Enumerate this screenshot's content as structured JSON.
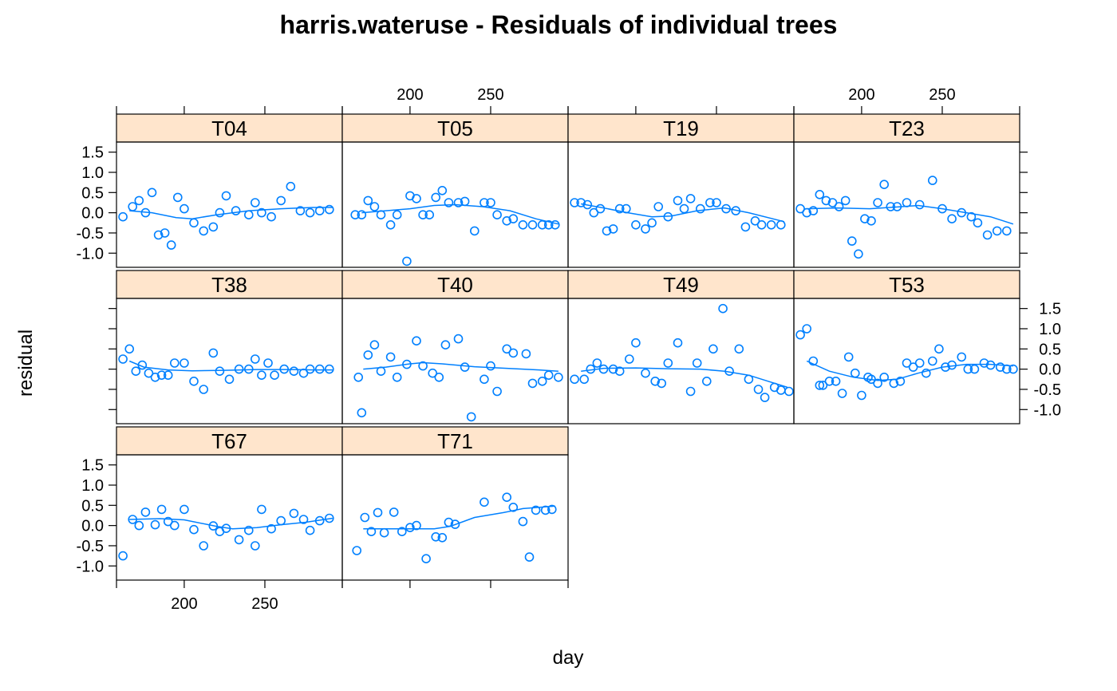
{
  "chart_data": {
    "type": "scatter",
    "title": "harris.wateruse - Residuals of individual trees",
    "xlabel": "day",
    "ylabel": "residual",
    "xlim": [
      158,
      298
    ],
    "ylim": [
      -1.35,
      1.75
    ],
    "x_ticks": [
      200,
      250
    ],
    "y_ticks": [
      -1.0,
      -0.5,
      0.0,
      0.5,
      1.0,
      1.5
    ],
    "y_tick_labels": [
      "-1.0",
      "-0.5",
      "0.0",
      "0.5",
      "1.0",
      "1.5"
    ],
    "strip_color": "#ffe5cc",
    "point_color": "#0080ff",
    "panels": [
      {
        "name": "T67",
        "row": 0,
        "col": 0,
        "x": [
          162,
          168,
          172,
          176,
          182,
          186,
          190,
          194,
          200,
          206,
          212,
          218,
          222,
          226,
          234,
          240,
          244,
          248,
          254,
          260,
          268,
          274,
          278,
          284,
          290
        ],
        "y": [
          -0.75,
          0.15,
          0.0,
          0.33,
          0.02,
          0.4,
          0.1,
          0.0,
          0.4,
          -0.1,
          -0.5,
          -0.01,
          -0.15,
          -0.07,
          -0.35,
          -0.12,
          -0.5,
          0.4,
          -0.08,
          0.12,
          0.3,
          0.15,
          -0.12,
          0.12,
          0.18
        ],
        "smooth": [
          [
            166,
            0.15
          ],
          [
            185,
            0.17
          ],
          [
            200,
            0.14
          ],
          [
            220,
            -0.02
          ],
          [
            230,
            -0.08
          ],
          [
            245,
            -0.05
          ],
          [
            260,
            0.02
          ],
          [
            275,
            0.08
          ],
          [
            292,
            0.18
          ]
        ]
      },
      {
        "name": "T71",
        "row": 0,
        "col": 1,
        "x": [
          167,
          172,
          176,
          180,
          184,
          190,
          195,
          200,
          204,
          210,
          216,
          220,
          224,
          228,
          246,
          260,
          264,
          270,
          274,
          278,
          284,
          288
        ],
        "y": [
          -0.62,
          0.2,
          -0.15,
          0.32,
          -0.18,
          0.33,
          -0.15,
          -0.05,
          0.0,
          -0.82,
          -0.28,
          -0.3,
          0.08,
          0.03,
          0.58,
          0.7,
          0.45,
          0.1,
          -0.78,
          0.38,
          0.38,
          0.4
        ],
        "smooth": [
          [
            171,
            -0.08
          ],
          [
            185,
            -0.08
          ],
          [
            200,
            -0.08
          ],
          [
            215,
            -0.08
          ],
          [
            225,
            -0.02
          ],
          [
            240,
            0.2
          ],
          [
            258,
            0.32
          ],
          [
            270,
            0.42
          ],
          [
            290,
            0.48
          ]
        ]
      },
      {
        "name": "T38",
        "row": 1,
        "col": 0,
        "x": [
          162,
          166,
          170,
          174,
          178,
          182,
          186,
          190,
          194,
          200,
          206,
          212,
          218,
          222,
          228,
          234,
          240,
          244,
          248,
          252,
          256,
          262,
          268,
          274,
          278,
          284,
          290
        ],
        "y": [
          0.25,
          0.5,
          -0.05,
          0.1,
          -0.1,
          -0.2,
          -0.15,
          -0.15,
          0.15,
          0.15,
          -0.3,
          -0.5,
          0.4,
          -0.05,
          -0.25,
          0.0,
          0.0,
          0.25,
          -0.15,
          0.15,
          -0.15,
          0.0,
          -0.05,
          -0.1,
          0.0,
          0.0,
          0.0
        ],
        "smooth": [
          [
            166,
            0.2
          ],
          [
            175,
            0.05
          ],
          [
            190,
            -0.02
          ],
          [
            205,
            -0.04
          ],
          [
            225,
            -0.03
          ],
          [
            245,
            -0.01
          ],
          [
            265,
            -0.01
          ],
          [
            280,
            -0.02
          ],
          [
            292,
            -0.02
          ]
        ]
      },
      {
        "name": "T40",
        "row": 1,
        "col": 1,
        "x": [
          168,
          170,
          174,
          178,
          182,
          188,
          192,
          198,
          204,
          208,
          214,
          218,
          222,
          230,
          234,
          238,
          246,
          250,
          254,
          260,
          264,
          272,
          276,
          282,
          286,
          292
        ],
        "y": [
          -0.2,
          -1.08,
          0.35,
          0.6,
          -0.05,
          0.3,
          -0.2,
          0.12,
          0.7,
          0.08,
          -0.1,
          -0.2,
          0.6,
          0.75,
          0.05,
          -1.18,
          -0.25,
          0.08,
          -0.55,
          0.5,
          0.4,
          0.38,
          -0.35,
          -0.3,
          -0.15,
          -0.2
        ],
        "smooth": [
          [
            171,
            0.0
          ],
          [
            185,
            0.05
          ],
          [
            200,
            0.13
          ],
          [
            208,
            0.16
          ],
          [
            220,
            0.13
          ],
          [
            240,
            0.06
          ],
          [
            260,
            0.02
          ],
          [
            280,
            -0.02
          ],
          [
            292,
            -0.05
          ]
        ]
      },
      {
        "name": "T49",
        "row": 1,
        "col": 2,
        "x": [
          162,
          168,
          172,
          176,
          180,
          186,
          190,
          196,
          200,
          206,
          212,
          216,
          220,
          226,
          234,
          238,
          244,
          248,
          254,
          258,
          264,
          270,
          276,
          280,
          286,
          290,
          295
        ],
        "y": [
          -0.25,
          -0.25,
          0.0,
          0.15,
          0.0,
          0.0,
          -0.05,
          0.25,
          0.65,
          -0.1,
          -0.3,
          -0.35,
          0.15,
          0.65,
          -0.55,
          0.15,
          -0.3,
          0.5,
          1.5,
          -0.05,
          0.5,
          -0.25,
          -0.5,
          -0.7,
          -0.45,
          -0.52,
          -0.55
        ],
        "smooth": [
          [
            166,
            -0.05
          ],
          [
            180,
            0.02
          ],
          [
            200,
            0.03
          ],
          [
            220,
            0.01
          ],
          [
            240,
            0.0
          ],
          [
            255,
            -0.05
          ],
          [
            270,
            -0.15
          ],
          [
            282,
            -0.3
          ],
          [
            294,
            -0.45
          ]
        ]
      },
      {
        "name": "T53",
        "row": 1,
        "col": 3,
        "x": [
          162,
          166,
          170,
          174,
          176,
          180,
          184,
          188,
          192,
          196,
          200,
          204,
          206,
          210,
          214,
          220,
          224,
          228,
          232,
          236,
          240,
          244,
          248,
          252,
          256,
          262,
          266,
          270,
          276,
          280,
          286,
          290,
          294
        ],
        "y": [
          0.85,
          1.0,
          0.2,
          -0.4,
          -0.4,
          -0.3,
          -0.3,
          -0.6,
          0.3,
          -0.1,
          -0.65,
          -0.2,
          -0.25,
          -0.35,
          -0.2,
          -0.35,
          -0.3,
          0.15,
          0.05,
          0.15,
          -0.1,
          0.2,
          0.5,
          0.05,
          0.1,
          0.3,
          0.0,
          0.0,
          0.15,
          0.1,
          0.05,
          0.0,
          0.0
        ],
        "smooth": [
          [
            166,
            0.2
          ],
          [
            180,
            -0.05
          ],
          [
            195,
            -0.2
          ],
          [
            210,
            -0.28
          ],
          [
            222,
            -0.25
          ],
          [
            235,
            -0.1
          ],
          [
            250,
            0.05
          ],
          [
            265,
            0.12
          ],
          [
            280,
            0.12
          ],
          [
            294,
            0.08
          ]
        ]
      },
      {
        "name": "T04",
        "row": 2,
        "col": 0,
        "x": [
          162,
          168,
          172,
          176,
          180,
          184,
          188,
          192,
          196,
          200,
          206,
          212,
          218,
          222,
          226,
          232,
          240,
          244,
          248,
          254,
          260,
          266,
          272,
          278,
          284,
          290
        ],
        "y": [
          -0.1,
          0.15,
          0.3,
          0.0,
          0.5,
          -0.55,
          -0.5,
          -0.8,
          0.38,
          0.1,
          -0.25,
          -0.45,
          -0.35,
          0.0,
          0.42,
          0.05,
          -0.05,
          0.25,
          0.0,
          -0.1,
          0.3,
          0.65,
          0.05,
          0.0,
          0.05,
          0.08
        ],
        "smooth": [
          [
            166,
            0.05
          ],
          [
            180,
            0.0
          ],
          [
            195,
            -0.12
          ],
          [
            205,
            -0.15
          ],
          [
            220,
            -0.05
          ],
          [
            240,
            0.05
          ],
          [
            260,
            0.1
          ],
          [
            280,
            0.13
          ],
          [
            292,
            0.13
          ]
        ]
      },
      {
        "name": "T05",
        "row": 2,
        "col": 1,
        "x": [
          166,
          170,
          174,
          178,
          182,
          188,
          192,
          198,
          200,
          204,
          208,
          212,
          216,
          220,
          224,
          230,
          234,
          240,
          246,
          250,
          254,
          260,
          264,
          270,
          276,
          282,
          286,
          290
        ],
        "y": [
          -0.05,
          -0.05,
          0.3,
          0.15,
          -0.05,
          -0.3,
          -0.05,
          -1.2,
          0.42,
          0.35,
          -0.05,
          -0.05,
          0.38,
          0.55,
          0.25,
          0.25,
          0.28,
          -0.45,
          0.25,
          0.25,
          -0.05,
          -0.2,
          -0.15,
          -0.3,
          -0.3,
          -0.3,
          -0.3,
          -0.3
        ],
        "smooth": [
          [
            170,
            0.0
          ],
          [
            185,
            0.05
          ],
          [
            200,
            0.1
          ],
          [
            215,
            0.18
          ],
          [
            228,
            0.2
          ],
          [
            245,
            0.15
          ],
          [
            262,
            0.05
          ],
          [
            278,
            -0.15
          ],
          [
            292,
            -0.28
          ]
        ]
      },
      {
        "name": "T19",
        "row": 2,
        "col": 2,
        "x": [
          162,
          166,
          170,
          174,
          178,
          182,
          186,
          190,
          194,
          200,
          206,
          210,
          214,
          220,
          226,
          230,
          234,
          240,
          246,
          250,
          256,
          262,
          268,
          274,
          278,
          284,
          290
        ],
        "y": [
          0.25,
          0.25,
          0.2,
          0.0,
          0.1,
          -0.45,
          -0.4,
          0.1,
          0.1,
          -0.3,
          -0.4,
          -0.25,
          0.15,
          -0.1,
          0.3,
          0.1,
          0.35,
          0.1,
          0.25,
          0.25,
          0.1,
          0.05,
          -0.35,
          -0.2,
          -0.3,
          -0.3,
          -0.3
        ],
        "smooth": [
          [
            166,
            0.22
          ],
          [
            180,
            0.12
          ],
          [
            195,
            0.0
          ],
          [
            210,
            -0.1
          ],
          [
            222,
            -0.08
          ],
          [
            238,
            0.05
          ],
          [
            255,
            0.12
          ],
          [
            270,
            0.0
          ],
          [
            292,
            -0.22
          ]
        ]
      },
      {
        "name": "T23",
        "row": 2,
        "col": 3,
        "x": [
          162,
          166,
          170,
          174,
          178,
          182,
          186,
          190,
          194,
          198,
          202,
          206,
          210,
          214,
          218,
          222,
          228,
          236,
          244,
          250,
          256,
          262,
          268,
          272,
          278,
          284,
          290
        ],
        "y": [
          0.1,
          0.0,
          0.05,
          0.45,
          0.3,
          0.25,
          0.15,
          0.3,
          -0.7,
          -1.02,
          -0.15,
          -0.2,
          0.25,
          0.7,
          0.15,
          0.15,
          0.25,
          0.2,
          0.8,
          0.1,
          -0.15,
          0.0,
          -0.1,
          -0.25,
          -0.55,
          -0.45,
          -0.45
        ],
        "smooth": [
          [
            166,
            0.1
          ],
          [
            185,
            0.12
          ],
          [
            205,
            0.1
          ],
          [
            225,
            0.15
          ],
          [
            235,
            0.18
          ],
          [
            250,
            0.1
          ],
          [
            265,
            0.0
          ],
          [
            280,
            -0.1
          ],
          [
            294,
            -0.28
          ]
        ]
      }
    ]
  }
}
